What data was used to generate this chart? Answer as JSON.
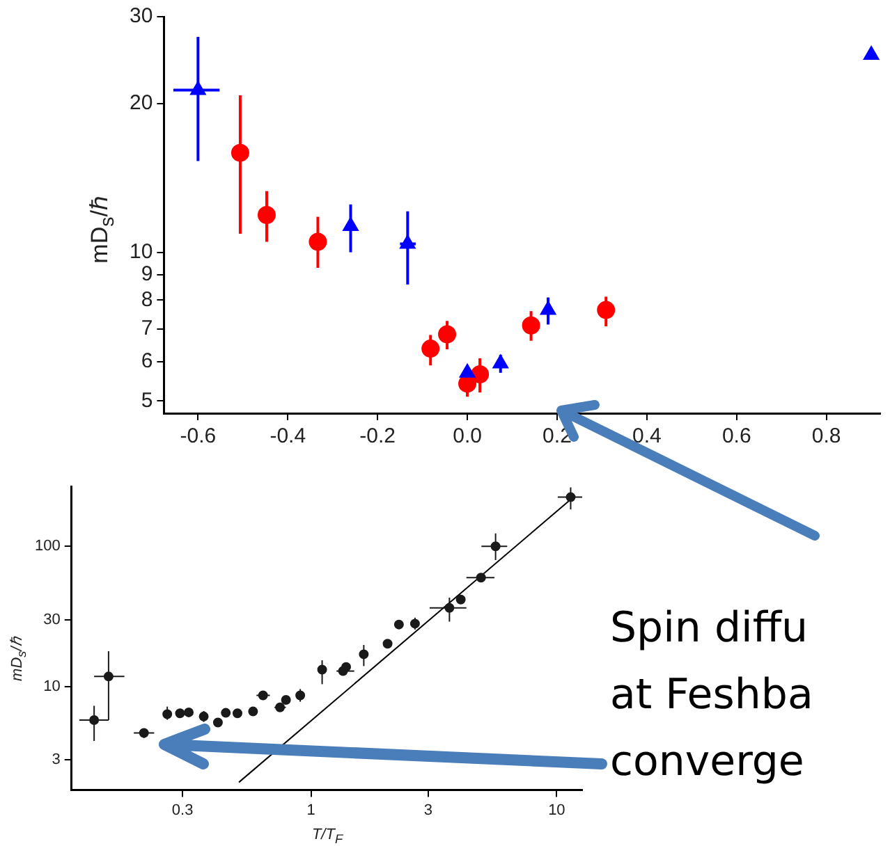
{
  "chart_data": [
    {
      "type": "scatter",
      "ylabel": "mD$_{s}$/ℏ",
      "log": "y",
      "xlim": [
        -0.676,
        0.92
      ],
      "ylim": [
        4.72,
        30
      ],
      "xticks": [
        -0.6,
        -0.4,
        -0.2,
        {
          "value": 0,
          "label": "0.0"
        },
        0.2,
        0.4,
        0.6,
        0.8
      ],
      "yticks": [
        5,
        6,
        7,
        8,
        9,
        10,
        20,
        30
      ],
      "series": [
        {
          "color": "#0000ff",
          "marker": "triangle",
          "x": [
            -0.6,
            -0.26,
            -0.133,
            0.0,
            0.074,
            0.18,
            0.9
          ],
          "values": [
            21.3,
            11.3,
            10.4,
            5.7,
            5.95,
            7.64,
            25.1
          ],
          "errors": [
            [
              15.3,
              27.3
            ],
            [
              10,
              12.5
            ],
            [
              8.6,
              12.1
            ],
            null,
            [
              5.7,
              6.2
            ],
            [
              7.14,
              8.1
            ],
            null
          ],
          "xerrors": [
            [
              -0.655,
              -0.552
            ],
            null,
            [
              -0.15,
              -0.115
            ],
            null,
            null,
            null,
            null
          ]
        },
        {
          "color": "#ff0000",
          "marker": "circle",
          "x": [
            -0.506,
            -0.447,
            -0.333,
            -0.082,
            -0.045,
            0.0,
            0.028,
            0.142,
            0.309
          ],
          "values": [
            15.9,
            11.9,
            10.5,
            6.38,
            6.82,
            5.42,
            5.66,
            7.11,
            7.64
          ],
          "errors": [
            [
              10.9,
              20.8
            ],
            [
              10.5,
              13.3
            ],
            [
              9.3,
              11.8
            ],
            [
              5.9,
              6.8
            ],
            [
              6.36,
              7.26
            ],
            [
              5.1,
              5.77
            ],
            [
              5.2,
              6.1
            ],
            [
              6.62,
              7.6
            ],
            [
              7.08,
              8.13
            ]
          ]
        }
      ]
    },
    {
      "type": "scatter",
      "xlabel": "T/T$_{F}$",
      "ylabel": "mD$_{s}$/ℏ",
      "log": "xy",
      "xlim": [
        0.106,
        12.7
      ],
      "ylim": [
        1.83,
        267
      ],
      "xticks": [
        0.3,
        1,
        3,
        10
      ],
      "yticks": [
        3,
        10,
        30,
        100
      ],
      "annotations": [
        "Spin diffu",
        "at Feshba",
        "converge"
      ],
      "series": [
        {
          "color": "#1a1a1a",
          "marker": "circle",
          "x": [
            0.131,
            0.15,
            0.209,
            0.26,
            0.293,
            0.318,
            0.366,
            0.418,
            0.45,
            0.502,
            0.581,
            0.638,
            0.748,
            0.791,
            0.904,
            1.11,
            1.35,
            1.39,
            1.64,
            2.05,
            2.28,
            2.65,
            3.66,
            4.07,
            4.92,
            5.64,
            11.4
          ],
          "values": [
            5.77,
            11.8,
            4.67,
            6.36,
            6.45,
            6.55,
            6.12,
            5.55,
            6.5,
            6.45,
            6.65,
            8.66,
            7.11,
            8.04,
            8.66,
            13.2,
            12.9,
            13.8,
            17.0,
            20.2,
            27.7,
            28.1,
            36.4,
            41.7,
            59.8,
            100,
            224
          ],
          "errors": [
            [
              4.1,
              7.3
            ],
            [
              5.77,
              17.9
            ],
            [
              4.3,
              5.0
            ],
            [
              5.8,
              7.2
            ],
            null,
            [
              6.2,
              6.9
            ],
            [
              5.6,
              6.7
            ],
            null,
            null,
            null,
            null,
            null,
            null,
            null,
            [
              7.8,
              9.6
            ],
            [
              10.4,
              15.4
            ],
            null,
            null,
            [
              14.0,
              19.8
            ],
            null,
            null,
            [
              25.5,
              31
            ],
            [
              29,
              43
            ],
            null,
            null,
            [
              79.8,
              123.6
            ],
            [
              183,
              263
            ]
          ],
          "xerrors": [
            [
              0.114,
              0.15
            ],
            [
              0.131,
              0.174
            ],
            [
              0.19,
              0.23
            ],
            null,
            null,
            null,
            null,
            null,
            null,
            null,
            null,
            [
              0.6,
              0.68
            ],
            [
              0.71,
              0.79
            ],
            null,
            null,
            null,
            [
              1.27,
              1.5
            ],
            null,
            null,
            null,
            null,
            null,
            [
              3.04,
              4.29
            ],
            null,
            [
              4.29,
              5.58
            ],
            [
              4.94,
              6.29
            ],
            [
              10.1,
              12.7
            ]
          ]
        },
        {
          "type": "line",
          "color": "#000000",
          "marker": "none",
          "x": [
            0.509,
            11.9
          ],
          "values": [
            2.08,
            230
          ]
        }
      ]
    }
  ]
}
